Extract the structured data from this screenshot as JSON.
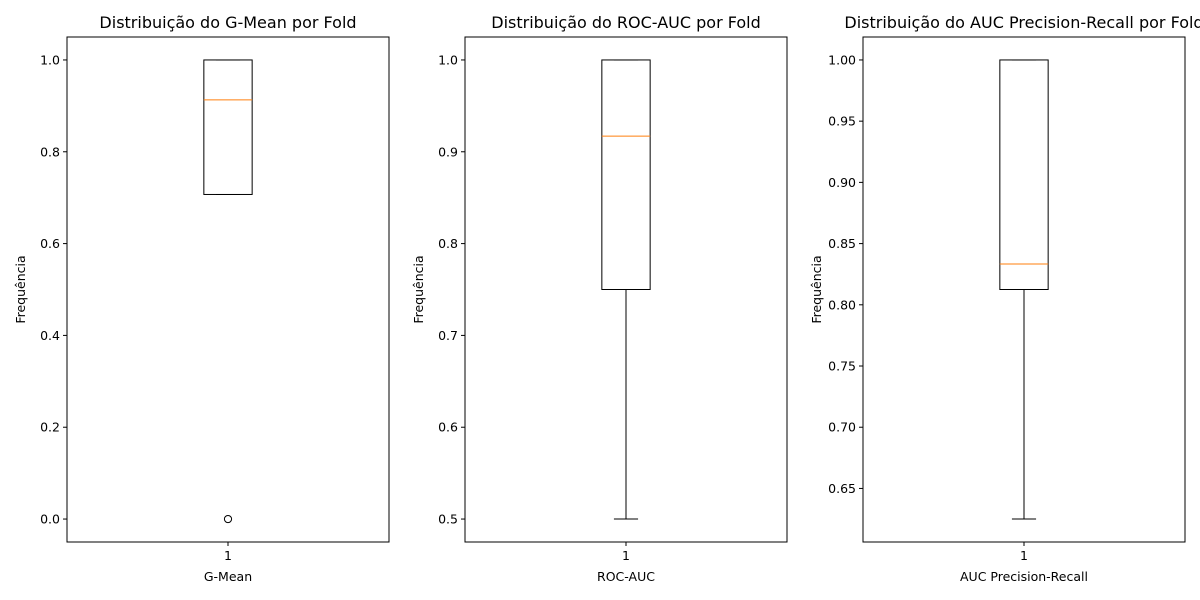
{
  "chart_data": [
    {
      "type": "boxplot",
      "title": "Distribuição do G-Mean por Fold",
      "xlabel": "G-Mean",
      "ylabel": "Frequência",
      "categories": [
        "1"
      ],
      "ylim": [
        -0.05,
        1.05
      ],
      "yticks": [
        0.0,
        0.2,
        0.4,
        0.6,
        0.8,
        1.0
      ],
      "ytick_labels": [
        "0.0",
        "0.2",
        "0.4",
        "0.6",
        "0.8",
        "1.0"
      ],
      "box": {
        "whisker_low": 0.707,
        "q1": 0.707,
        "median": 0.913,
        "q3": 1.0,
        "whisker_high": 1.0,
        "outliers": [
          0.0
        ]
      }
    },
    {
      "type": "boxplot",
      "title": "Distribuição do ROC-AUC por Fold",
      "xlabel": "ROC-AUC",
      "ylabel": "Frequência",
      "categories": [
        "1"
      ],
      "ylim": [
        0.475,
        1.025
      ],
      "yticks": [
        0.5,
        0.6,
        0.7,
        0.8,
        0.9,
        1.0
      ],
      "ytick_labels": [
        "0.5",
        "0.6",
        "0.7",
        "0.8",
        "0.9",
        "1.0"
      ],
      "box": {
        "whisker_low": 0.5,
        "q1": 0.75,
        "median": 0.917,
        "q3": 1.0,
        "whisker_high": 1.0,
        "outliers": []
      }
    },
    {
      "type": "boxplot",
      "title": "Distribuição do AUC Precision-Recall por Fold",
      "xlabel": "AUC Precision-Recall",
      "ylabel": "Frequência",
      "categories": [
        "1"
      ],
      "ylim": [
        0.60625,
        1.01875
      ],
      "yticks": [
        0.65,
        0.7,
        0.75,
        0.8,
        0.85,
        0.9,
        0.95,
        1.0
      ],
      "ytick_labels": [
        "0.65",
        "0.70",
        "0.75",
        "0.80",
        "0.85",
        "0.90",
        "0.95",
        "1.00"
      ],
      "box": {
        "whisker_low": 0.625,
        "q1": 0.8125,
        "median": 0.8333,
        "q3": 1.0,
        "whisker_high": 1.0,
        "outliers": []
      }
    }
  ],
  "colors": {
    "median": "#ff7f0e",
    "box": "#000000"
  }
}
